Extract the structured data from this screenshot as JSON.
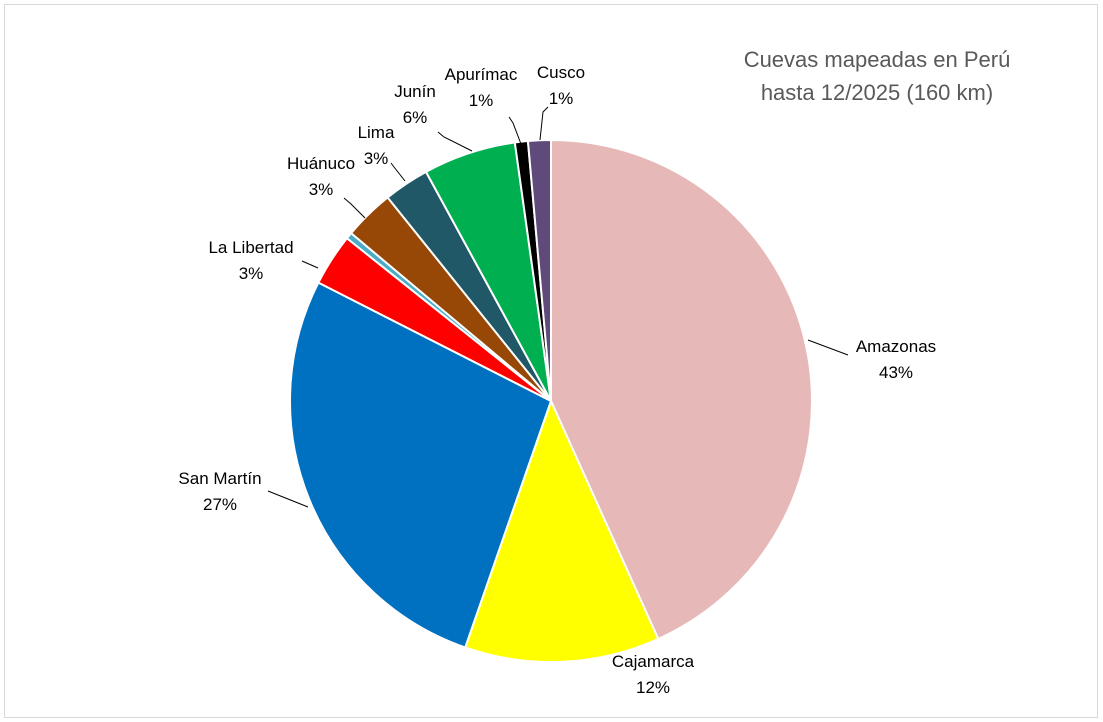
{
  "chart_data": {
    "type": "pie",
    "title_lines": [
      "Cuevas mapeadas en Perú",
      "hasta 12/2025 (160 km)"
    ],
    "start_angle_deg": 0,
    "direction": "clockwise",
    "slices": [
      {
        "name": "Amazonas",
        "value": 43.0,
        "label": "43%",
        "color": "#e6b8b7"
      },
      {
        "name": "Cajamarca",
        "value": 12.0,
        "label": "12%",
        "color": "#ffff00"
      },
      {
        "name": "San Martín",
        "value": 27.0,
        "label": "27%",
        "color": "#0070c0"
      },
      {
        "name": "La Libertad",
        "value": 3.2,
        "label": "3%",
        "color": "#ff0000"
      },
      {
        "name": "",
        "value": 0.4,
        "label": "",
        "color": "#4bacc6"
      },
      {
        "name": "Huánuco",
        "value": 3.1,
        "label": "3%",
        "color": "#974706"
      },
      {
        "name": "Lima",
        "value": 2.8,
        "label": "3%",
        "color": "#215868"
      },
      {
        "name": "Junín",
        "value": 5.7,
        "label": "6%",
        "color": "#00b050"
      },
      {
        "name": "Apurímac",
        "value": 0.8,
        "label": "1%",
        "color": "#000000"
      },
      {
        "name": "Cusco",
        "value": 1.4,
        "label": "1%",
        "color": "#604a7b"
      }
    ]
  }
}
